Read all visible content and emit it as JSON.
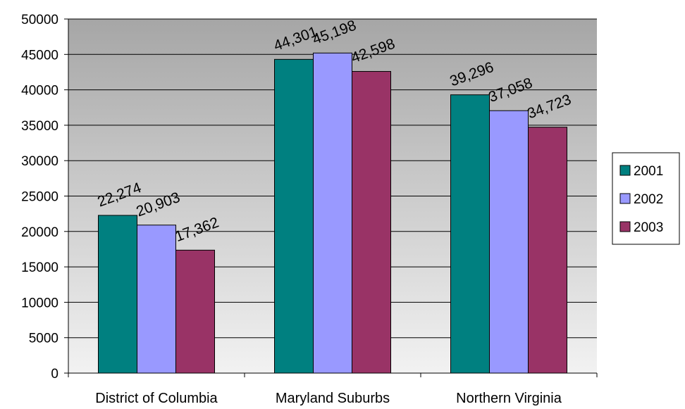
{
  "chart_data": {
    "type": "bar",
    "categories": [
      "District of Columbia",
      "Maryland Suburbs",
      "Northern Virginia"
    ],
    "series": [
      {
        "name": "2001",
        "values": [
          22274,
          44301,
          39296
        ],
        "labels": [
          "22,274",
          "44,301",
          "39,296"
        ],
        "color": "#008080"
      },
      {
        "name": "2002",
        "values": [
          20903,
          45198,
          37058
        ],
        "labels": [
          "20,903",
          "45,198",
          "37,058"
        ],
        "color": "#9999FF"
      },
      {
        "name": "2003",
        "values": [
          17362,
          42598,
          34723
        ],
        "labels": [
          "17,362",
          "42,598",
          "34,723"
        ],
        "color": "#993366"
      }
    ],
    "ylim": [
      0,
      50000
    ],
    "yticks": [
      0,
      5000,
      10000,
      15000,
      20000,
      25000,
      30000,
      35000,
      40000,
      45000,
      50000
    ],
    "ytick_labels": [
      "0",
      "5000",
      "10000",
      "15000",
      "20000",
      "25000",
      "30000",
      "35000",
      "40000",
      "45000",
      "50000"
    ],
    "title": "",
    "xlabel": "",
    "ylabel": "",
    "grid": "horizontal",
    "legend": "right",
    "colors": {
      "plot_gradient_top": "#A6A6A6",
      "plot_gradient_bottom": "#F2F2F2",
      "gridline": "#000000",
      "bar_edge": "#000000"
    }
  }
}
